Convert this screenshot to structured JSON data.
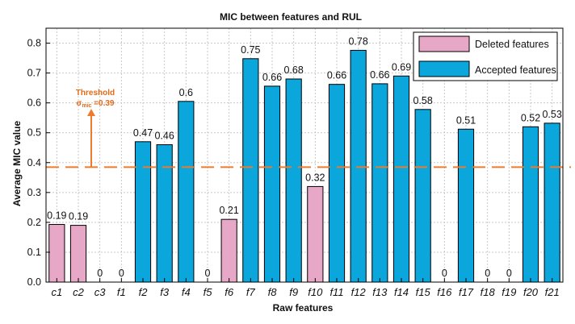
{
  "chart_data": {
    "type": "bar",
    "title": "MIC between features and RUL",
    "xlabel": "Raw features",
    "ylabel": "Average MIC value",
    "ylim": [
      0,
      0.85
    ],
    "yticks": [
      0,
      0.1,
      0.2,
      0.3,
      0.4,
      0.5,
      0.6,
      0.7,
      0.8
    ],
    "ytick_labels": [
      "0.0",
      "0.1",
      "0.2",
      "0.3",
      "0.4",
      "0.5",
      "0.6",
      "0.7",
      "0.8"
    ],
    "grid": true,
    "categories": [
      "c1",
      "c2",
      "c3",
      "f1",
      "f2",
      "f3",
      "f4",
      "f5",
      "f6",
      "f7",
      "f8",
      "f9",
      "f10",
      "f11",
      "f12",
      "f13",
      "f14",
      "f15",
      "f16",
      "f17",
      "f18",
      "f19",
      "f20",
      "f21"
    ],
    "values": [
      0.193,
      0.19,
      0,
      0,
      0.47,
      0.46,
      0.605,
      0,
      0.21,
      0.748,
      0.656,
      0.68,
      0.32,
      0.662,
      0.776,
      0.664,
      0.69,
      0.578,
      0,
      0.512,
      0,
      0,
      0.52,
      0.532
    ],
    "value_labels": [
      "0.19",
      "0.19",
      "0",
      "0",
      "0.47",
      "0.46",
      "0.6",
      "0",
      "0.21",
      "0.75",
      "0.66",
      "0.68",
      "0.32",
      "0.66",
      "0.78",
      "0.66",
      "0.69",
      "0.58",
      "0",
      "0.51",
      "0",
      "0",
      "0.52",
      "0.53"
    ],
    "groups": [
      "deleted",
      "deleted",
      "deleted",
      "deleted",
      "accepted",
      "accepted",
      "accepted",
      "deleted",
      "deleted",
      "accepted",
      "accepted",
      "accepted",
      "deleted",
      "accepted",
      "accepted",
      "accepted",
      "accepted",
      "accepted",
      "deleted",
      "accepted",
      "deleted",
      "deleted",
      "accepted",
      "accepted"
    ],
    "series": [
      {
        "name": "Deleted features",
        "key": "deleted",
        "color": "#e6a8c6"
      },
      {
        "name": "Accepted features",
        "key": "accepted",
        "color": "#0aa6dc"
      }
    ],
    "legend_position": "top-right",
    "threshold": {
      "value": 0.385,
      "color": "#ee7b2c",
      "label_line1": "Threshold",
      "label_symbol": "σ",
      "label_sub": "mic",
      "label_rest": " =0.39",
      "arrow_from": 0.385,
      "arrow_to": 0.58
    }
  }
}
